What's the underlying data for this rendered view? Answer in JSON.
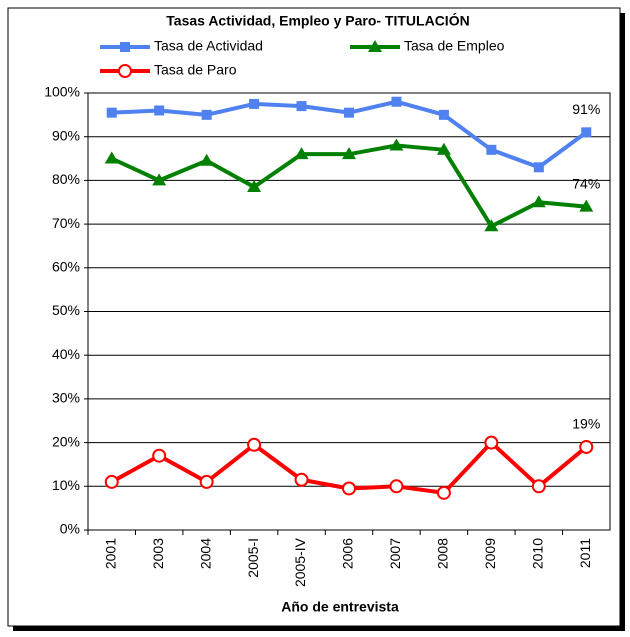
{
  "chart_data": {
    "type": "line",
    "title": "Tasas Actividad, Empleo y Paro- TITULACIÓN",
    "x_label": "Año de entrevista",
    "categories": [
      "2001",
      "2003",
      "2004",
      "2005-I",
      "2005-IV",
      "2006",
      "2007",
      "2008",
      "2009",
      "2010",
      "2011"
    ],
    "series": [
      {
        "name": "Tasa de Actividad",
        "color": "#4f81f0",
        "marker": "square",
        "values": [
          95.5,
          96,
          95,
          97.5,
          97,
          95.5,
          98,
          95,
          87,
          83,
          91
        ],
        "value_labels": [
          null,
          null,
          null,
          null,
          null,
          null,
          null,
          null,
          null,
          null,
          "91%"
        ]
      },
      {
        "name": "Tasa de Empleo",
        "color": "#008000",
        "marker": "triangle",
        "values": [
          85,
          80,
          84.5,
          78.5,
          86,
          86,
          88,
          87,
          69.5,
          75,
          74
        ],
        "value_labels": [
          null,
          null,
          null,
          null,
          null,
          null,
          null,
          null,
          null,
          null,
          "74%"
        ]
      },
      {
        "name": "Tasa de Paro",
        "color": "#ff0000",
        "marker": "circle",
        "values": [
          11,
          17,
          11,
          19.5,
          11.5,
          9.5,
          10,
          8.5,
          20,
          10,
          19
        ],
        "value_labels": [
          null,
          null,
          null,
          null,
          null,
          null,
          null,
          null,
          null,
          null,
          "19%"
        ]
      }
    ],
    "ylim": [
      0,
      100
    ],
    "yticks": [
      {
        "value": 0,
        "label": "0%"
      },
      {
        "value": 10,
        "label": "10%"
      },
      {
        "value": 20,
        "label": "20%"
      },
      {
        "value": 30,
        "label": "30%"
      },
      {
        "value": 40,
        "label": "40%"
      },
      {
        "value": 50,
        "label": "50%"
      },
      {
        "value": 60,
        "label": "60%"
      },
      {
        "value": 70,
        "label": "70%"
      },
      {
        "value": 80,
        "label": "80%"
      },
      {
        "value": 90,
        "label": "90%"
      },
      {
        "value": 100,
        "label": "100%"
      }
    ],
    "grid": true
  }
}
